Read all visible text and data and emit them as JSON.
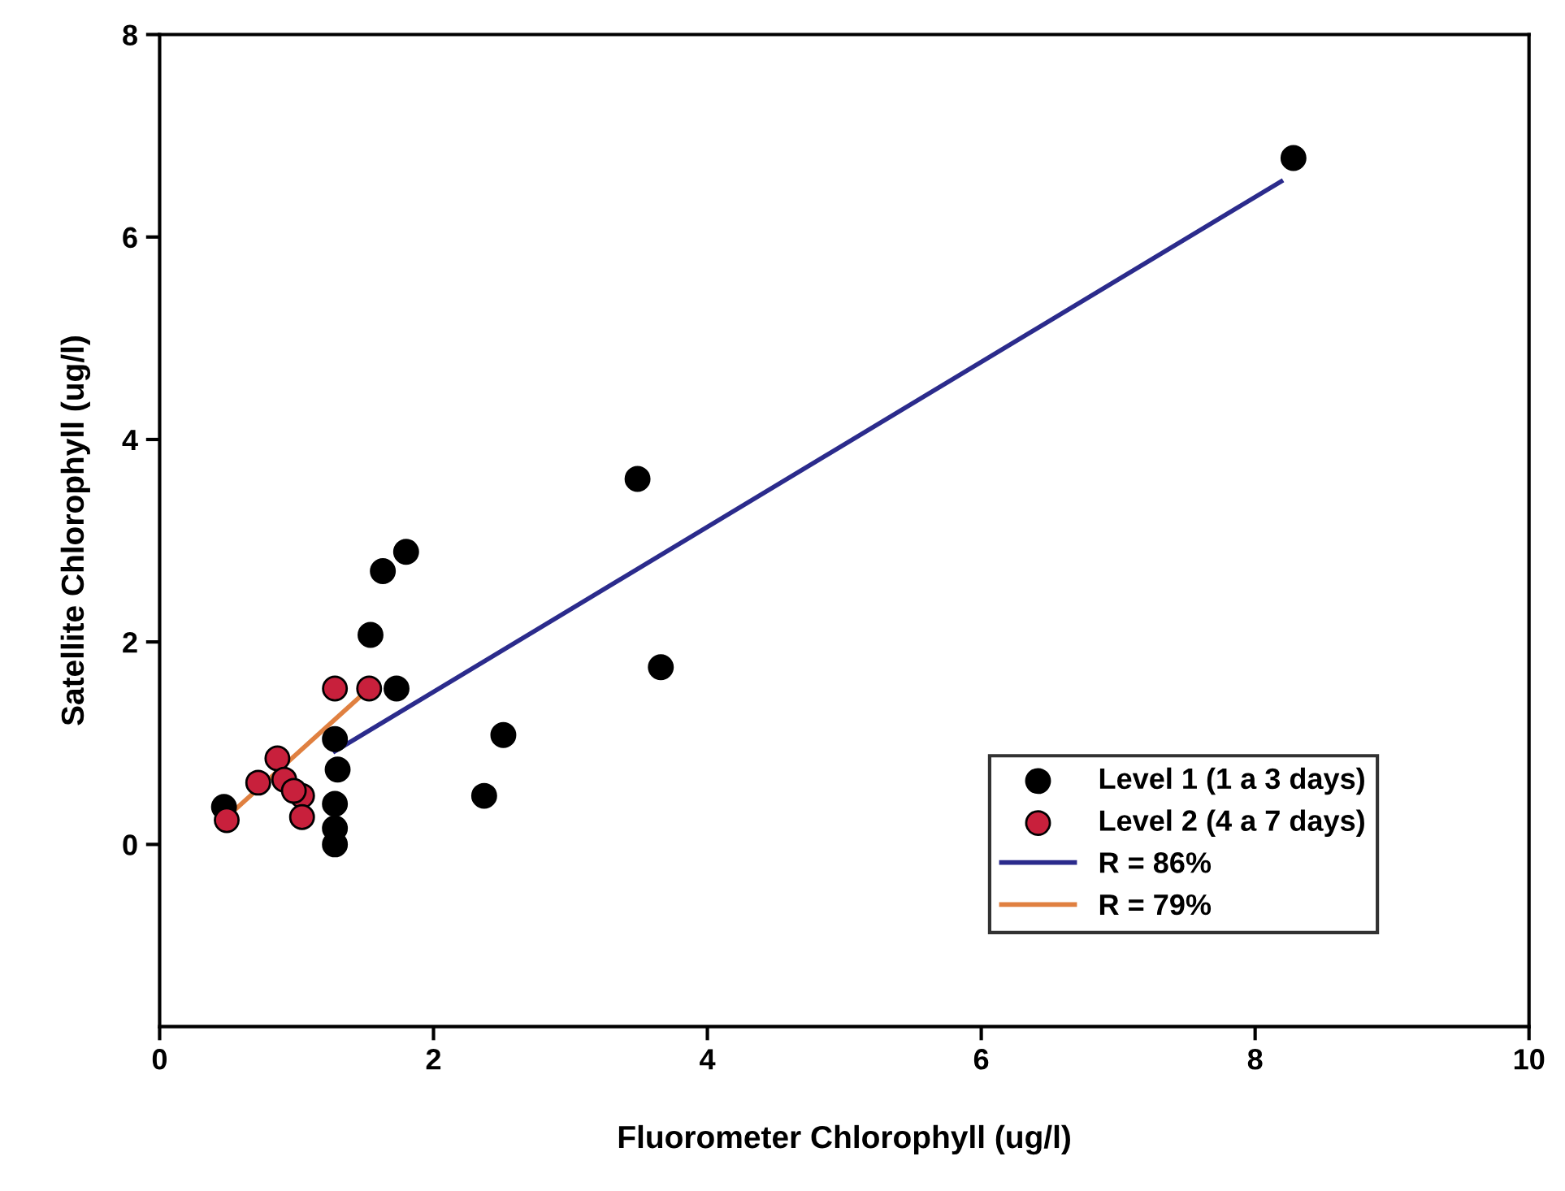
{
  "chart_data": {
    "type": "scatter",
    "xlabel": "Fluorometer Chlorophyll (ug/l)",
    "ylabel": "Satellite Chlorophyll (ug/l)",
    "xlim": [
      0,
      10
    ],
    "xticks": [
      0,
      2,
      4,
      6,
      8,
      10
    ],
    "ylim": [
      -1.8,
      8
    ],
    "yticks": [
      0,
      2,
      4,
      6,
      8
    ],
    "grid": false,
    "legend": "bottom right",
    "series": [
      {
        "name": "Level 1 (1 a 3 days)",
        "marker": "circle",
        "color": "#000000",
        "x": [
          8.28,
          3.49,
          3.66,
          1.8,
          1.63,
          1.54,
          1.73,
          1.28,
          1.3,
          1.28,
          1.28,
          1.28,
          0.47,
          2.51,
          2.37
        ],
        "values": [
          6.78,
          3.61,
          1.75,
          2.89,
          2.7,
          2.07,
          1.54,
          1.04,
          0.74,
          0.4,
          0.16,
          0.0,
          0.37,
          1.08,
          0.48
        ]
      },
      {
        "name": "Level 2 (4 a 7 days)",
        "marker": "circle",
        "color": "#c8203c",
        "x": [
          1.28,
          1.53,
          0.86,
          0.72,
          0.91,
          1.04,
          1.04,
          0.49,
          0.98
        ],
        "values": [
          1.54,
          1.54,
          0.85,
          0.61,
          0.64,
          0.48,
          0.27,
          0.24,
          0.53
        ]
      },
      {
        "name": "R = 86%",
        "type": "line",
        "color": "#2b2b8c",
        "x": [
          1.28,
          8.19
        ],
        "values": [
          0.92,
          6.55
        ]
      },
      {
        "name": "R = 79%",
        "type": "line",
        "color": "#e08040",
        "x": [
          0.49,
          1.53
        ],
        "values": [
          0.27,
          1.54
        ]
      }
    ]
  }
}
